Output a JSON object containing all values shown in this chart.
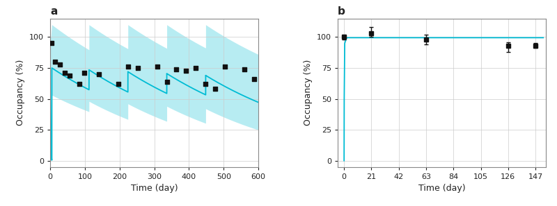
{
  "panel_a": {
    "title": "a",
    "xlabel": "Time (day)",
    "ylabel": "Occupancy (%)",
    "xlim": [
      0,
      600
    ],
    "ylim": [
      -5,
      115
    ],
    "yticks": [
      0,
      25,
      50,
      75,
      100
    ],
    "xticks": [
      0,
      100,
      200,
      300,
      400,
      500,
      600
    ],
    "line_color": "#00bcd4",
    "band_color": "#7ddde8",
    "band_alpha": 0.55,
    "dose_days": [
      0,
      112,
      224,
      336,
      448
    ],
    "scatter_x": [
      5,
      14,
      28,
      42,
      56,
      84,
      98,
      140,
      196,
      224,
      252,
      308,
      336,
      364,
      392,
      420,
      448,
      476,
      504,
      560,
      588
    ],
    "scatter_y": [
      95,
      80,
      78,
      71,
      69,
      62,
      71,
      70,
      62,
      76,
      75,
      76,
      64,
      74,
      73,
      75,
      62,
      58,
      76,
      74,
      66
    ],
    "marker_color": "#111111",
    "marker_size": 5
  },
  "panel_b": {
    "title": "b",
    "xlabel": "Time (day)",
    "ylabel": "Occupancy (%)",
    "xlim": [
      -5,
      155
    ],
    "ylim": [
      -5,
      115
    ],
    "yticks": [
      0,
      25,
      50,
      75,
      100
    ],
    "xticks": [
      0,
      21,
      42,
      63,
      84,
      105,
      126,
      147
    ],
    "line_color": "#00bcd4",
    "scatter_x": [
      0,
      21,
      63,
      126,
      147
    ],
    "scatter_y": [
      100,
      103,
      98,
      93,
      93
    ],
    "scatter_yerr_lo": [
      2,
      3,
      4,
      5,
      2
    ],
    "scatter_yerr_hi": [
      2,
      5,
      4,
      3,
      2
    ],
    "marker_color": "#111111",
    "marker_size": 5
  },
  "bg_color": "#ffffff",
  "grid_color": "#cccccc",
  "spine_color": "#888888",
  "font_color": "#222222"
}
